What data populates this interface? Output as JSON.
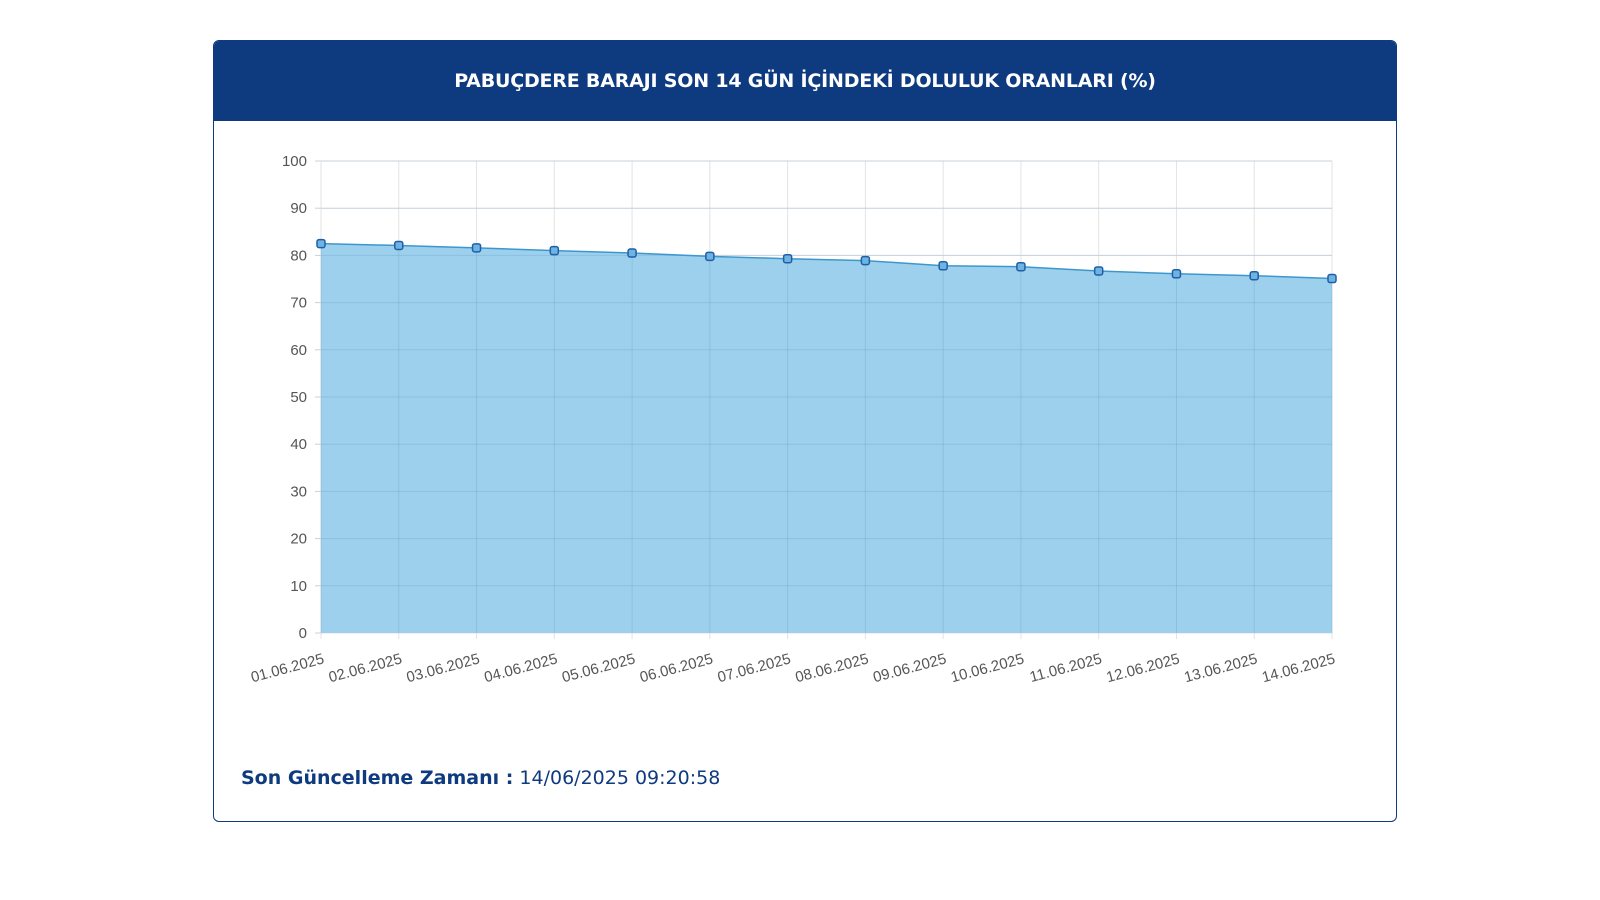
{
  "header": {
    "title": "PABUÇDERE BARAJI SON 14 GÜN İÇİNDEKİ DOLULUK ORANLARI (%)"
  },
  "footer": {
    "label": "Son Güncelleme Zamanı :",
    "value": "14/06/2025 09:20:58"
  },
  "colors": {
    "header_bg": "#0e3a80",
    "area_fill": "#9dd0ec",
    "line": "#3d97cf",
    "point_stroke": "#1f5fa8"
  },
  "chart_data": {
    "type": "area",
    "title": "PABUÇDERE BARAJI SON 14 GÜN İÇİNDEKİ DOLULUK ORANLARI (%)",
    "categories": [
      "01.06.2025",
      "02.06.2025",
      "03.06.2025",
      "04.06.2025",
      "05.06.2025",
      "06.06.2025",
      "07.06.2025",
      "08.06.2025",
      "09.06.2025",
      "10.06.2025",
      "11.06.2025",
      "12.06.2025",
      "13.06.2025",
      "14.06.2025"
    ],
    "values": [
      82.5,
      82.1,
      81.6,
      81.0,
      80.5,
      79.8,
      79.3,
      78.9,
      77.8,
      77.6,
      76.7,
      76.1,
      75.7,
      75.1
    ],
    "yticks": [
      0,
      10,
      20,
      30,
      40,
      50,
      60,
      70,
      80,
      90,
      100
    ],
    "ylim": [
      0,
      100
    ],
    "xlabel": "",
    "ylabel": "",
    "grid": true,
    "legend": "none"
  }
}
